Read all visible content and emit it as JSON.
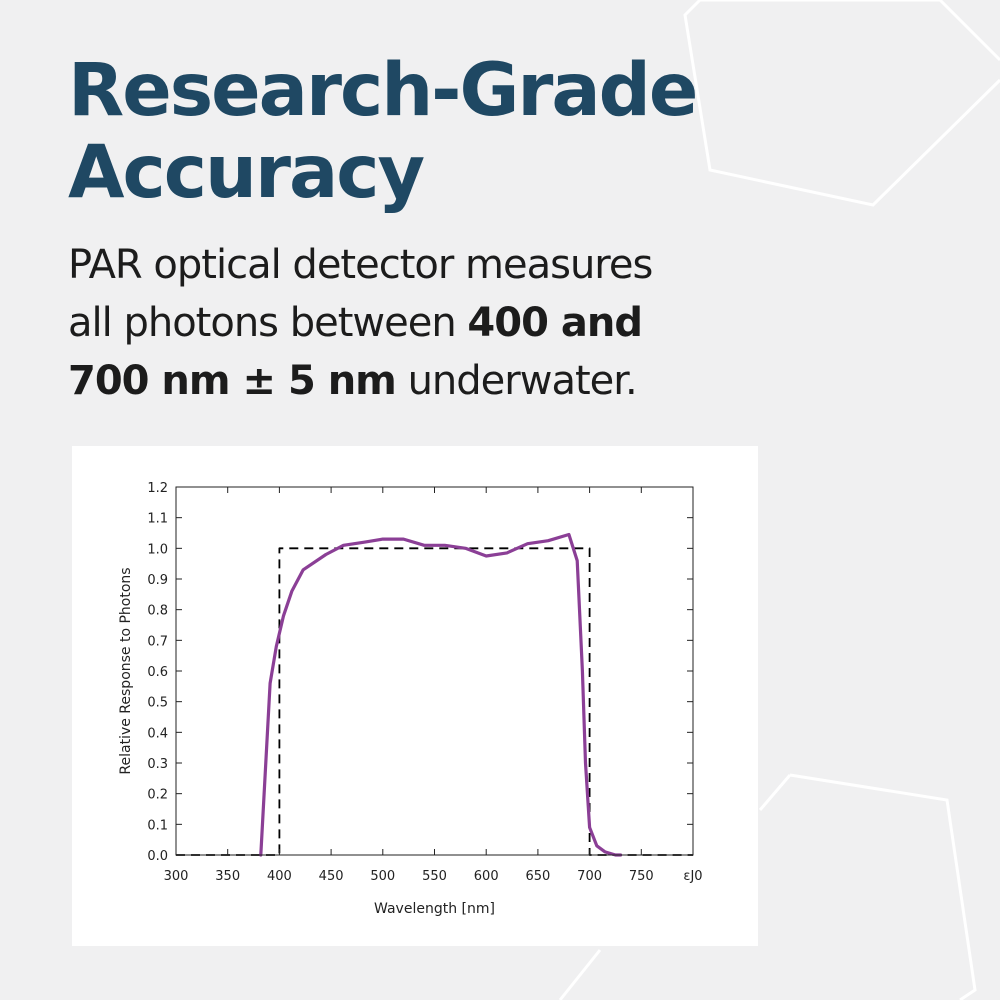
{
  "headline": {
    "line1": "Research-Grade",
    "line2": "Accuracy"
  },
  "subtitle": {
    "line1": "PAR optical detector measures",
    "line2_normal": "all photons between ",
    "line2_bold": "400 and",
    "line3_bold": "700 nm ± 5 nm",
    "line3_normal": " underwater."
  },
  "colors": {
    "headline": "#1f4863",
    "subtitle": "#1c1c1c",
    "background": "#f0f0f1",
    "card": "#ffffff",
    "response_curve": "#8b3f96",
    "ideal_curve": "#000000"
  },
  "chart_data": {
    "type": "line",
    "title": "",
    "xlabel": "Wavelength [nm]",
    "ylabel": "Relative Response to Photons",
    "xlim": [
      300,
      800
    ],
    "ylim": [
      0.0,
      1.2
    ],
    "x_ticks": [
      300,
      350,
      400,
      450,
      500,
      550,
      600,
      650,
      700,
      750,
      800
    ],
    "x_tick_labels": [
      "300",
      "350",
      "400",
      "450",
      "500",
      "550",
      "600",
      "650",
      "700",
      "750",
      "ɛJ0"
    ],
    "y_ticks": [
      0.0,
      0.1,
      0.2,
      0.3,
      0.4,
      0.5,
      0.6,
      0.7,
      0.8,
      0.9,
      1.0,
      1.1,
      1.2
    ],
    "y_tick_labels": [
      "0.0",
      "0.1",
      "0.2",
      "0.3",
      "0.4",
      "0.5",
      "0.6",
      "0.7",
      "0.8",
      "0.9",
      "1.0",
      "1.1",
      "1.2"
    ],
    "grid": false,
    "series": [
      {
        "style": "solid",
        "color": "#8b3f96",
        "x": [
          382,
          391,
          397,
          404,
          412,
          423,
          445,
          462,
          482,
          500,
          520,
          540,
          560,
          580,
          600,
          620,
          640,
          660,
          680,
          688,
          693,
          696,
          700,
          707,
          715,
          725,
          730
        ],
        "y": [
          0.0,
          0.56,
          0.68,
          0.78,
          0.86,
          0.93,
          0.98,
          1.01,
          1.02,
          1.03,
          1.03,
          1.01,
          1.01,
          1.0,
          0.975,
          0.985,
          1.015,
          1.025,
          1.045,
          0.96,
          0.6,
          0.3,
          0.09,
          0.03,
          0.01,
          0.0,
          0.0
        ]
      },
      {
        "style": "dashed",
        "color": "#000000",
        "x": [
          300,
          400,
          400,
          700,
          700,
          800
        ],
        "y": [
          0.0,
          0.0,
          1.0,
          1.0,
          0.0,
          0.0
        ]
      }
    ]
  }
}
